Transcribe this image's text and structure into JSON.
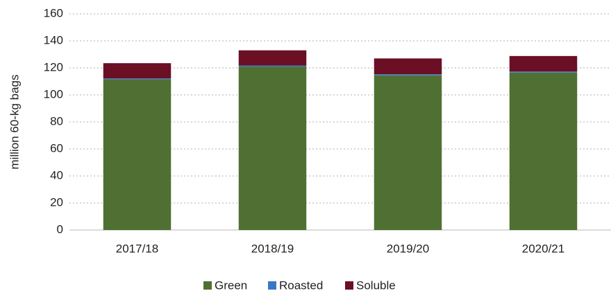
{
  "chart_data": {
    "type": "stacked-bar",
    "ylabel": "million 60-kg bags",
    "categories": [
      "2017/18",
      "2018/19",
      "2019/20",
      "2020/21"
    ],
    "series": [
      {
        "name": "Green",
        "color": "#4f7032",
        "values": [
          111.5,
          121,
          114.5,
          116.5
        ]
      },
      {
        "name": "Roasted",
        "color": "#3a78c6",
        "values": [
          0.7,
          0.8,
          0.8,
          0.8
        ]
      },
      {
        "name": "Soluble",
        "color": "#6b0f24",
        "values": [
          11.3,
          11.2,
          11.7,
          11.5
        ]
      }
    ],
    "ylim": [
      0,
      160
    ],
    "yticks": [
      0,
      20,
      40,
      60,
      80,
      100,
      120,
      140,
      160
    ],
    "grid": true
  }
}
